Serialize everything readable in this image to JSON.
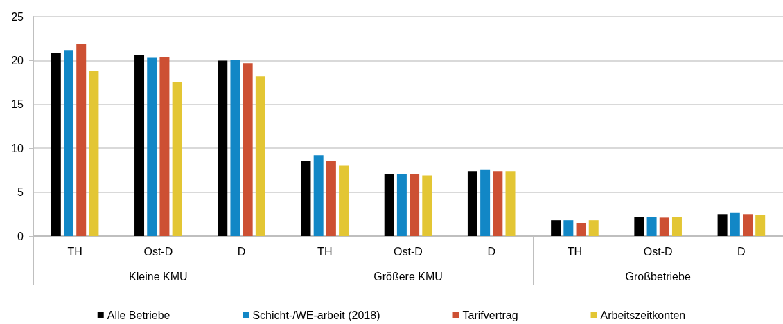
{
  "chart_data": {
    "type": "bar",
    "categories": [
      "TH",
      "Ost-D",
      "D",
      "TH",
      "Ost-D",
      "D",
      "TH",
      "Ost-D",
      "D"
    ],
    "annotations": [
      "Kleine KMU",
      "Größere KMU",
      "Großbetriebe"
    ],
    "series": [
      {
        "name": "Alle Betriebe",
        "color": "#000000",
        "values": [
          20.9,
          20.6,
          20.0,
          8.6,
          7.1,
          7.4,
          1.8,
          2.2,
          2.5
        ]
      },
      {
        "name": "Schicht-/WE-arbeit (2018)",
        "color": "#1287c6",
        "values": [
          21.2,
          20.3,
          20.1,
          9.2,
          7.1,
          7.6,
          1.8,
          2.2,
          2.7
        ]
      },
      {
        "name": "Tarifvertrag",
        "color": "#cd5033",
        "values": [
          21.9,
          20.4,
          19.7,
          8.6,
          7.1,
          7.4,
          1.5,
          2.1,
          2.5
        ]
      },
      {
        "name": "Arbeitszeitkonten",
        "color": "#e3c634",
        "values": [
          18.8,
          17.5,
          18.2,
          8.0,
          6.9,
          7.4,
          1.8,
          2.2,
          2.4
        ]
      }
    ],
    "ylim": [
      0,
      25
    ],
    "yticks": [
      0,
      5,
      10,
      15,
      20,
      25
    ],
    "grid": "y",
    "legend": "bottom"
  }
}
